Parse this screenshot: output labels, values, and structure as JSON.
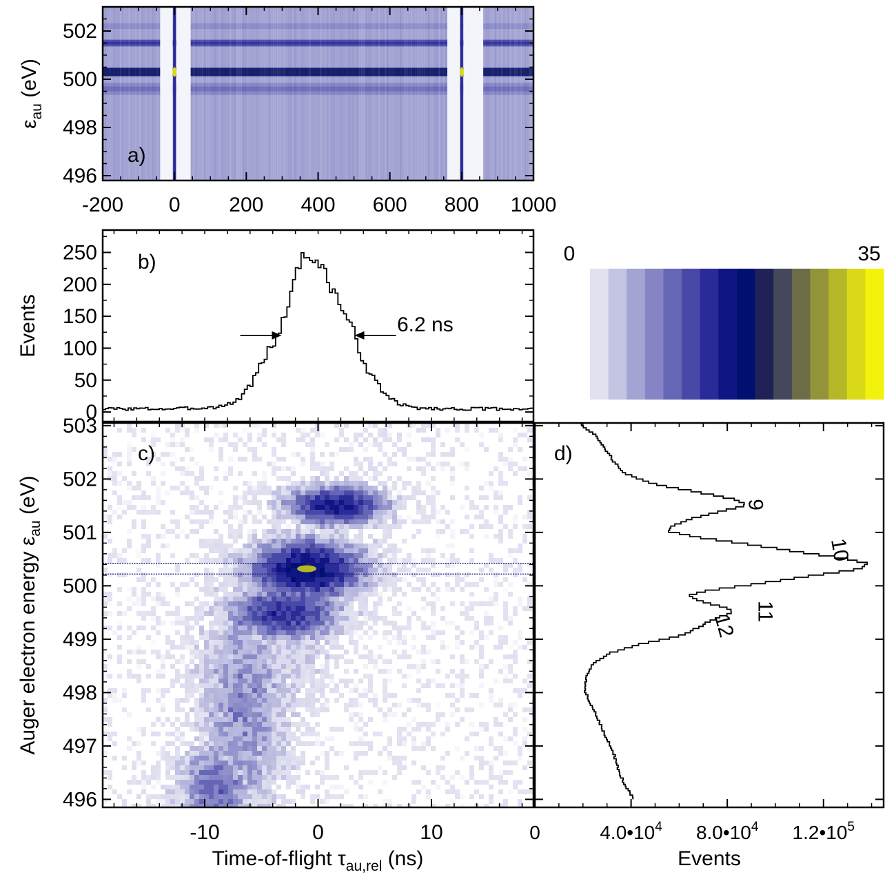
{
  "colorbar": {
    "min_label": "0",
    "max_label": "35",
    "range": [
      0,
      35
    ],
    "colors": [
      "#e1e1ef",
      "#c3c3e2",
      "#a4a4d4",
      "#8585c5",
      "#6666b6",
      "#4848a7",
      "#2a2a98",
      "#0f1584",
      "#00106e",
      "#202257",
      "#45475a",
      "#6c6c47",
      "#929437",
      "#b6b728",
      "#d9d917",
      "#f2f20c"
    ]
  },
  "chart_data": [
    {
      "panel": "a",
      "type": "heatmap",
      "panel_label": "a)",
      "ylabel_main": "ε",
      "ylabel_sub": "au",
      "ylabel_unit": " (eV)",
      "xlim": [
        -200,
        1000
      ],
      "ylim": [
        495.8,
        503
      ],
      "xticks": [
        -200,
        0,
        200,
        400,
        600,
        800,
        1000
      ],
      "yticks": [
        496,
        498,
        500,
        502
      ],
      "bands": [
        {
          "center": 500.3,
          "width": 0.35,
          "level": 8
        },
        {
          "center": 501.5,
          "width": 0.28,
          "level": 5
        },
        {
          "center": 499.6,
          "width": 0.5,
          "level": 3
        },
        {
          "center": 502.2,
          "width": 0.6,
          "level": 2
        }
      ],
      "background_level": 2,
      "gaps_x": [
        [
          -40,
          -5
        ],
        [
          5,
          45
        ],
        [
          760,
          795
        ],
        [
          805,
          860
        ]
      ],
      "bright_spots_x": [
        0,
        800
      ]
    },
    {
      "panel": "b",
      "type": "line",
      "panel_label": "b)",
      "ylabel": "Events",
      "xlim": [
        -19,
        19
      ],
      "ylim": [
        -15,
        285
      ],
      "yticks": [
        0,
        50,
        100,
        150,
        200,
        250
      ],
      "annotation": "6.2 ns",
      "fwhm_left": -3.1,
      "fwhm_right": 3.1,
      "fwhm_level": 120,
      "x": [
        -19,
        -17,
        -15,
        -13,
        -11,
        -9,
        -8,
        -7,
        -6,
        -5,
        -4,
        -3,
        -2.5,
        -2,
        -1.5,
        -1,
        -0.5,
        0,
        0.5,
        1,
        2,
        3,
        4,
        5,
        6,
        7,
        8,
        9,
        11,
        13,
        15,
        17,
        19
      ],
      "y": [
        5,
        5,
        5,
        5,
        6,
        8,
        12,
        22,
        45,
        80,
        110,
        150,
        190,
        225,
        242,
        245,
        240,
        230,
        215,
        195,
        165,
        125,
        75,
        45,
        25,
        12,
        8,
        6,
        5,
        5,
        5,
        5,
        5
      ]
    },
    {
      "panel": "c",
      "type": "heatmap",
      "panel_label": "c)",
      "xlabel_main": "Time-of-flight τ",
      "xlabel_sub": "au,rel",
      "xlabel_unit": " (ns)",
      "ylabel_main": "Auger electron energy ε",
      "ylabel_sub": "au",
      "ylabel_unit": " (eV)",
      "xlim": [
        -19,
        19
      ],
      "ylim": [
        495.85,
        503.05
      ],
      "xticks": [
        -10,
        0,
        10
      ],
      "yticks": [
        496,
        497,
        498,
        499,
        500,
        501,
        502,
        503
      ],
      "blobs": [
        {
          "x": 1.5,
          "y": 501.5,
          "sx": 3.0,
          "sy": 0.25,
          "level": 7
        },
        {
          "x": -1.0,
          "y": 500.3,
          "sx": 3.5,
          "sy": 0.38,
          "level": 8
        },
        {
          "x": -3.0,
          "y": 499.5,
          "sx": 3.5,
          "sy": 0.35,
          "level": 6
        },
        {
          "x": -6.5,
          "y": 497.8,
          "sx": 2.8,
          "sy": 1.6,
          "level": 3
        },
        {
          "x": -9.0,
          "y": 496.2,
          "sx": 2.2,
          "sy": 0.6,
          "level": 4
        }
      ],
      "guide_lines_y": [
        500.22,
        500.42
      ]
    },
    {
      "panel": "d",
      "type": "line",
      "panel_label": "d)",
      "xlabel": "Events",
      "xticks": [
        0,
        40000,
        80000,
        120000
      ],
      "xtick_labels": [
        {
          "mant": "0",
          "exp": ""
        },
        {
          "mant": "4.0•10",
          "exp": "4"
        },
        {
          "mant": "8.0•10",
          "exp": "4"
        },
        {
          "mant": "1.2•10",
          "exp": "5"
        }
      ],
      "xlim": [
        0,
        145000
      ],
      "ylim": [
        495.85,
        503.05
      ],
      "peak_labels": [
        {
          "text": "9",
          "energy": 501.52,
          "events": 89000,
          "rotate": 90
        },
        {
          "text": "10",
          "energy": 500.65,
          "events": 124000,
          "rotate": 80
        },
        {
          "text": "11",
          "energy": 499.52,
          "events": 93000,
          "rotate": 90
        },
        {
          "text": "12",
          "energy": 499.22,
          "events": 76000,
          "rotate": 75
        }
      ],
      "energy": [
        496.0,
        496.2,
        496.5,
        496.8,
        497.1,
        497.4,
        497.7,
        498.0,
        498.3,
        498.5,
        498.7,
        498.9,
        499.05,
        499.2,
        499.35,
        499.5,
        499.6,
        499.7,
        499.8,
        499.9,
        500.0,
        500.1,
        500.2,
        500.3,
        500.4,
        500.5,
        500.6,
        500.75,
        500.9,
        501.0,
        501.1,
        501.25,
        501.4,
        501.5,
        501.6,
        501.75,
        501.9,
        502.1,
        502.3,
        502.5,
        502.8,
        503.05
      ],
      "events": [
        41000,
        38000,
        35000,
        33000,
        30000,
        27000,
        24000,
        21000,
        21500,
        24000,
        30000,
        45000,
        61000,
        68000,
        74000,
        83000,
        77000,
        68000,
        64000,
        73000,
        90000,
        105000,
        120000,
        136000,
        138000,
        128000,
        112000,
        90000,
        66000,
        56000,
        57000,
        66000,
        80000,
        88000,
        83000,
        66000,
        48000,
        37000,
        33000,
        30000,
        25000,
        18000
      ]
    }
  ]
}
